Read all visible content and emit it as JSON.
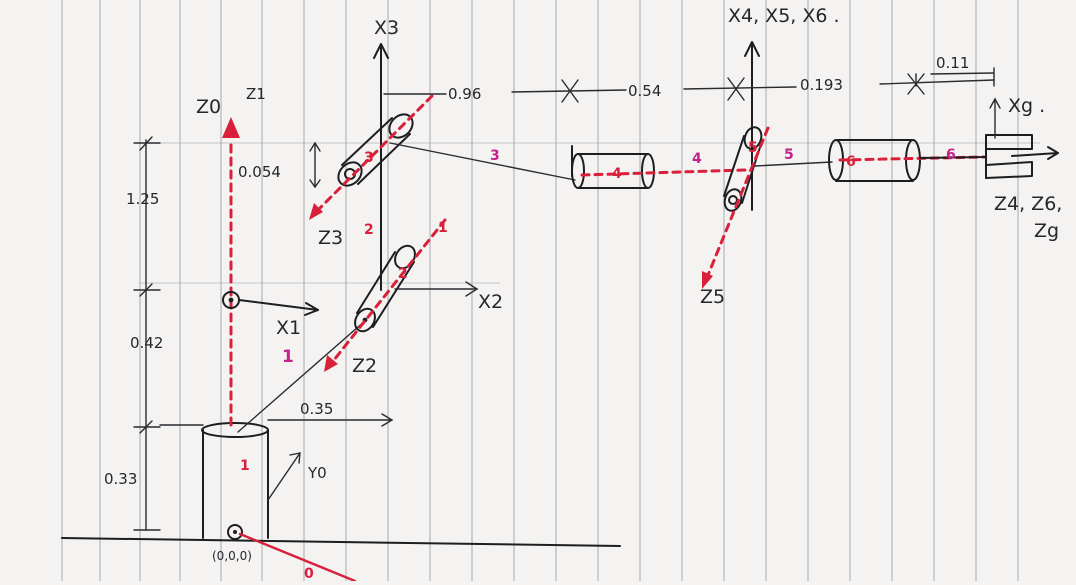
{
  "frame_labels": {
    "z0": "Z0",
    "z1": "Z1",
    "x1": "X1",
    "x0": "Y0",
    "x2": "X2",
    "z2": "Z2",
    "x3": "X3",
    "z3": "Z3",
    "x456": "X4, X5, X6 .",
    "z5": "Z5",
    "xg": "Xg .",
    "z46g": "Z4, Z6,",
    "zg": "Zg",
    "origin": "(0,0,0)"
  },
  "dimensions": {
    "d_033": "0.33",
    "d_042": "0.42",
    "d_125": "1.25",
    "d_035": "0.35",
    "d_0054": "0.054",
    "d_096": "0.96",
    "d_054": "0.54",
    "d_0193": "0.193",
    "d_011": "0.11"
  },
  "joint_numbers": {
    "j0": "0",
    "j1_red": "1",
    "j1_pink": "1",
    "j1_top": "1",
    "j2_red": "2",
    "j2_link": "2",
    "j3_red": "3",
    "j3_link": "3",
    "j4_red": "4",
    "j4_link": "4",
    "j5_red": "5",
    "j5_link": "5",
    "j6_red": "6",
    "j6_link": "6"
  },
  "colors": {
    "ink": "#1e1e22",
    "red": "#d8203a",
    "pink": "#c4218a",
    "paper": "#f4f3f1",
    "rule_line": "#b9b9bf"
  }
}
